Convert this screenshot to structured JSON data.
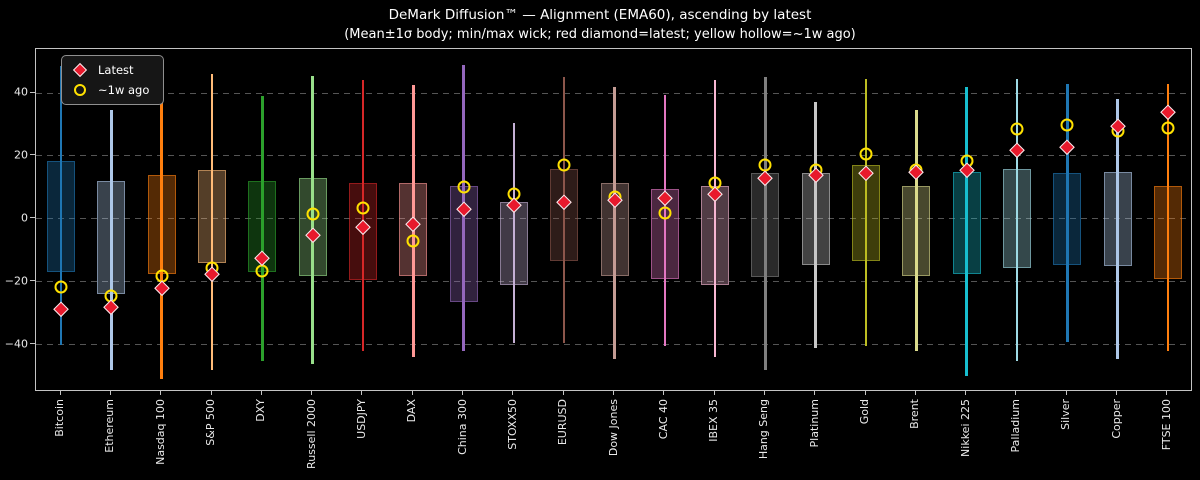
{
  "chart_data": {
    "type": "candlestick",
    "title": "DeMark Diffusion™ — Alignment (EMA60), ascending by latest",
    "subtitle": "(Mean±1σ body; min/max wick; red diamond=latest; yellow hollow=~1w ago)",
    "ylim": [
      -55,
      54
    ],
    "yticks": [
      40,
      20,
      0,
      -20,
      -40
    ],
    "ytick_labels": [
      "40",
      "20",
      "0",
      "−20",
      "−40"
    ],
    "grid": "dashed-horizontal",
    "legend_position": "upper-left",
    "legend": [
      {
        "label": "Latest",
        "marker": "red-diamond",
        "color": "#e8192c"
      },
      {
        "label": "~1w ago",
        "marker": "yellow-hollow-circle",
        "color": "#ffe100"
      }
    ],
    "series": [
      {
        "name": "Bitcoin",
        "color": "#1f77b4",
        "min": -40,
        "max": 48.5,
        "body_low": -17,
        "body_high": 18.5,
        "latest": -28.5,
        "week_ago": -21.5
      },
      {
        "name": "Ethereum",
        "color": "#aec7e8",
        "min": -48,
        "max": 34.5,
        "body_low": -24,
        "body_high": 12,
        "latest": -28,
        "week_ago": -24.5
      },
      {
        "name": "Nasdaq 100",
        "color": "#ff7f0e",
        "min": -51,
        "max": 43.5,
        "body_low": -17.5,
        "body_high": 14,
        "latest": -22,
        "week_ago": -18
      },
      {
        "name": "S&P 500",
        "color": "#ffbb78",
        "min": -48,
        "max": 46,
        "body_low": -14,
        "body_high": 15.5,
        "latest": -17.5,
        "week_ago": -15.5
      },
      {
        "name": "DXY",
        "color": "#2ca02c",
        "min": -45,
        "max": 39,
        "body_low": -17,
        "body_high": 12,
        "latest": -12.5,
        "week_ago": -16.5
      },
      {
        "name": "Russell 2000",
        "color": "#98df8a",
        "min": -46,
        "max": 45.5,
        "body_low": -18,
        "body_high": 13,
        "latest": -5,
        "week_ago": 1.5
      },
      {
        "name": "USDJPY",
        "color": "#d62728",
        "min": -42,
        "max": 44,
        "body_low": -19.5,
        "body_high": 11.5,
        "latest": -2.5,
        "week_ago": 3.5
      },
      {
        "name": "DAX",
        "color": "#ff9896",
        "min": -44,
        "max": 42.5,
        "body_low": -18,
        "body_high": 11.5,
        "latest": -1.5,
        "week_ago": -7
      },
      {
        "name": "China 300",
        "color": "#9467bd",
        "min": -42,
        "max": 49,
        "body_low": -26.5,
        "body_high": 10.5,
        "latest": 3,
        "week_ago": 10
      },
      {
        "name": "STOXX50",
        "color": "#c5b0d5",
        "min": -39.5,
        "max": 30.5,
        "body_low": -21,
        "body_high": 5.5,
        "latest": 4.5,
        "week_ago": 8
      },
      {
        "name": "EURUSD",
        "color": "#8c564b",
        "min": -39.5,
        "max": 45,
        "body_low": -13.5,
        "body_high": 16,
        "latest": 5.5,
        "week_ago": 17
      },
      {
        "name": "Dow Jones",
        "color": "#c49c94",
        "min": -44.5,
        "max": 42,
        "body_low": -18,
        "body_high": 11.5,
        "latest": 6,
        "week_ago": 7
      },
      {
        "name": "CAC 40",
        "color": "#e377c2",
        "min": -40.5,
        "max": 39.5,
        "body_low": -19,
        "body_high": 9.5,
        "latest": 6.5,
        "week_ago": 2
      },
      {
        "name": "IBEX 35",
        "color": "#f7b6d2",
        "min": -44,
        "max": 44,
        "body_low": -21,
        "body_high": 10.5,
        "latest": 8,
        "week_ago": 11.5
      },
      {
        "name": "Hang Seng",
        "color": "#7f7f7f",
        "min": -48,
        "max": 45,
        "body_low": -18.5,
        "body_high": 14.5,
        "latest": 13,
        "week_ago": 17
      },
      {
        "name": "Platinum",
        "color": "#c7c7c7",
        "min": -41,
        "max": 37,
        "body_low": -14.5,
        "body_high": 14.5,
        "latest": 14,
        "week_ago": 15.5
      },
      {
        "name": "Gold",
        "color": "#bcbd22",
        "min": -40.5,
        "max": 44.5,
        "body_low": -13.5,
        "body_high": 17,
        "latest": 14.5,
        "week_ago": 20.5
      },
      {
        "name": "Brent",
        "color": "#dbdb8d",
        "min": -42,
        "max": 34.5,
        "body_low": -18,
        "body_high": 10.5,
        "latest": 15,
        "week_ago": 15.5
      },
      {
        "name": "Nikkei 225",
        "color": "#17becf",
        "min": -50,
        "max": 42,
        "body_low": -17.5,
        "body_high": 15,
        "latest": 15.5,
        "week_ago": 18.5
      },
      {
        "name": "Palladium",
        "color": "#9edae5",
        "min": -45,
        "max": 44.5,
        "body_low": -15.5,
        "body_high": 16,
        "latest": 22,
        "week_ago": 28.5
      },
      {
        "name": "Silver",
        "color": "#1f77b4",
        "min": -39,
        "max": 43,
        "body_low": -14.5,
        "body_high": 14.5,
        "latest": 23,
        "week_ago": 30
      },
      {
        "name": "Copper",
        "color": "#aec7e8",
        "min": -44.5,
        "max": 38,
        "body_low": -15,
        "body_high": 15,
        "latest": 29.5,
        "week_ago": 28
      },
      {
        "name": "FTSE 100",
        "color": "#ff7f0e",
        "min": -42,
        "max": 43,
        "body_low": -19,
        "body_high": 10.5,
        "latest": 34,
        "week_ago": 29
      }
    ]
  }
}
